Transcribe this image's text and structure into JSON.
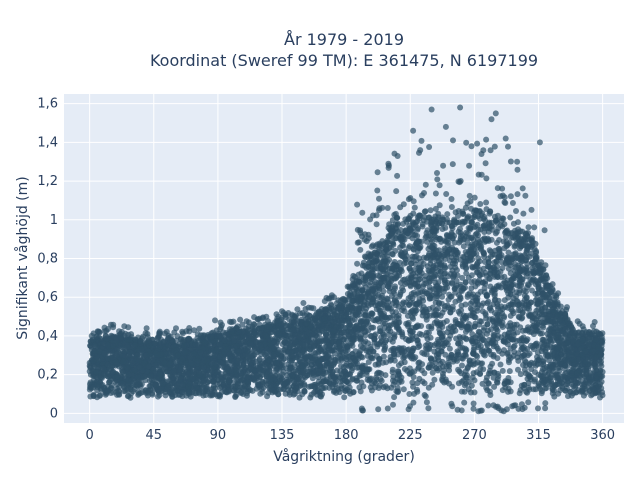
{
  "chart_data": {
    "type": "scatter",
    "title_lines": [
      "År 1979 - 2019",
      "Koordinat (Sweref 99 TM): E 361475, N 6197199"
    ],
    "xlabel": "Vågriktning (grader)",
    "ylabel": "Signifikant våghöjd (m)",
    "xlim": [
      -18,
      375
    ],
    "ylim": [
      -0.05,
      1.65
    ],
    "x_ticks": [
      0,
      45,
      90,
      135,
      180,
      225,
      270,
      315,
      360
    ],
    "y_ticks": [
      0,
      0.2,
      0.4,
      0.6,
      0.8,
      1,
      1.2,
      1.4,
      1.6
    ],
    "y_tick_labels": [
      "0",
      "0,2",
      "0,4",
      "0,6",
      "0,8",
      "1",
      "1,2",
      "1,4",
      "1,6"
    ],
    "grid": true,
    "marker_color": "#2f5168",
    "plot_background": "#e5ecf6",
    "density_profile": [
      {
        "x": 0,
        "y_max": 0.38
      },
      {
        "x": 20,
        "y_max": 0.39
      },
      {
        "x": 45,
        "y_max": 0.36
      },
      {
        "x": 90,
        "y_max": 0.4
      },
      {
        "x": 135,
        "y_max": 0.46
      },
      {
        "x": 160,
        "y_max": 0.5
      },
      {
        "x": 180,
        "y_max": 0.6
      },
      {
        "x": 195,
        "y_max": 0.8
      },
      {
        "x": 210,
        "y_max": 0.95
      },
      {
        "x": 225,
        "y_max": 1.02
      },
      {
        "x": 250,
        "y_max": 1.0
      },
      {
        "x": 270,
        "y_max": 1.05
      },
      {
        "x": 290,
        "y_max": 1.0
      },
      {
        "x": 310,
        "y_max": 0.9
      },
      {
        "x": 325,
        "y_max": 0.6
      },
      {
        "x": 340,
        "y_max": 0.42
      },
      {
        "x": 360,
        "y_max": 0.4
      }
    ],
    "outliers": [
      {
        "x": 240,
        "y": 1.57
      },
      {
        "x": 260,
        "y": 1.58
      },
      {
        "x": 285,
        "y": 1.55
      },
      {
        "x": 282,
        "y": 1.52
      },
      {
        "x": 250,
        "y": 1.48
      },
      {
        "x": 227,
        "y": 1.46
      },
      {
        "x": 316,
        "y": 1.4
      },
      {
        "x": 292,
        "y": 1.42
      },
      {
        "x": 255,
        "y": 1.41
      },
      {
        "x": 268,
        "y": 1.38
      },
      {
        "x": 232,
        "y": 1.36
      },
      {
        "x": 210,
        "y": 1.28
      },
      {
        "x": 300,
        "y": 1.3
      },
      {
        "x": 275,
        "y": 1.34
      },
      {
        "x": 40,
        "y": 0.44
      },
      {
        "x": 88,
        "y": 0.48
      },
      {
        "x": 150,
        "y": 0.57
      },
      {
        "x": 165,
        "y": 0.58
      },
      {
        "x": 346,
        "y": 0.45
      },
      {
        "x": 330,
        "y": 0.48
      }
    ]
  }
}
